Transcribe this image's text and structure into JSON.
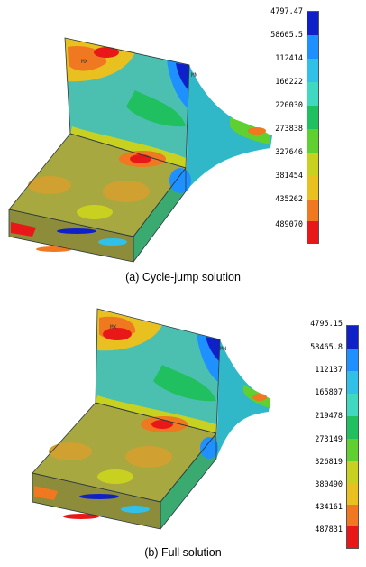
{
  "panels": [
    {
      "caption": "(a) Cycle-jump solution",
      "node_tags": [
        "MX",
        "MN"
      ],
      "legend": {
        "labels": [
          "4797.47",
          "58605.5",
          "112414",
          "166222",
          "220030",
          "273838",
          "327646",
          "381454",
          "435262",
          "489070"
        ],
        "colors": [
          "#1020c8",
          "#1e90ff",
          "#30c0e8",
          "#40d8c0",
          "#20c060",
          "#60d030",
          "#c8d020",
          "#e8c020",
          "#f07820",
          "#e81818"
        ]
      }
    },
    {
      "caption": "(b) Full solution",
      "node_tags": [
        "MX",
        "MN"
      ],
      "legend": {
        "labels": [
          "4795.15",
          "58465.8",
          "112137",
          "165807",
          "219478",
          "273149",
          "326819",
          "380490",
          "434161",
          "487831"
        ],
        "colors": [
          "#1020c8",
          "#1e90ff",
          "#30c0e8",
          "#40d8c0",
          "#20c060",
          "#60d030",
          "#c8d020",
          "#e8c020",
          "#f07820",
          "#e81818"
        ]
      }
    }
  ]
}
